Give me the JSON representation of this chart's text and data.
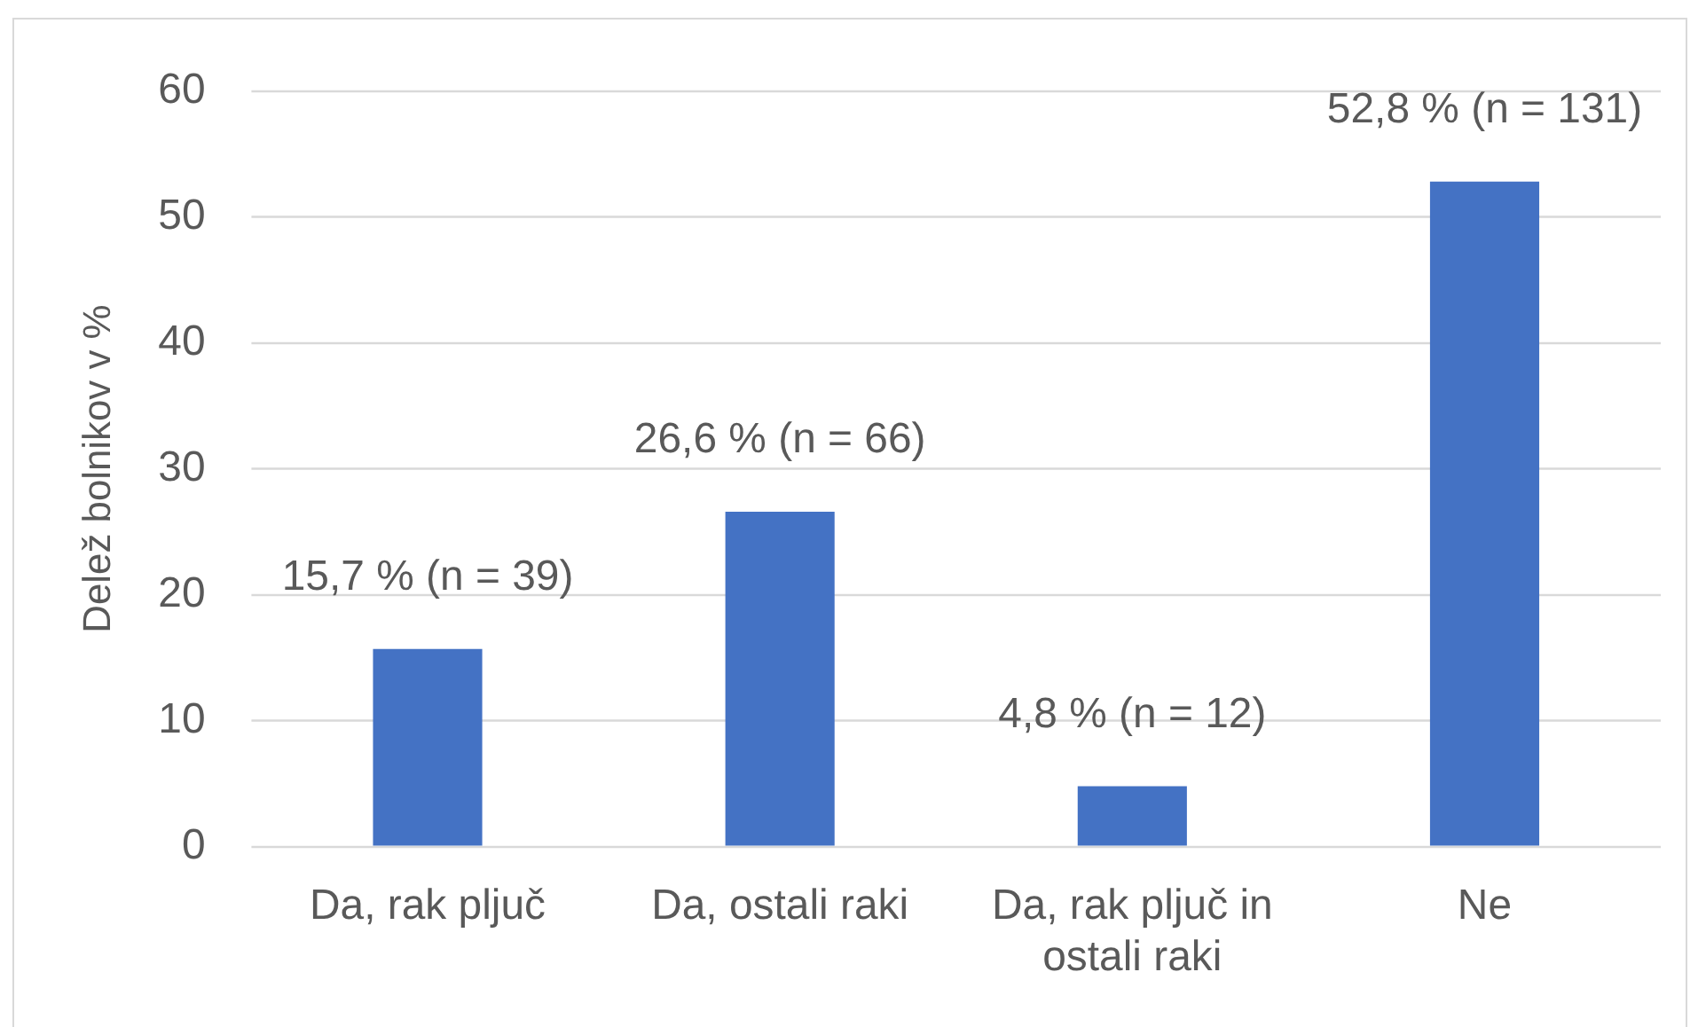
{
  "chart_data": {
    "type": "bar",
    "ylabel": "Delež bolnikov v %",
    "categories": [
      "Da, rak pljuč",
      "Da, ostali raki",
      "Da, rak pljuč in ostali raki",
      "Ne"
    ],
    "values": [
      15.7,
      26.6,
      4.8,
      52.8
    ],
    "value_labels": [
      "15,7 % (n = 39)",
      "26,6 % (n = 66)",
      "4,8 % (n = 12)",
      "52,8 % (n = 131)"
    ],
    "color": "#4472c4",
    "ylim": [
      0,
      60
    ],
    "yticks": [
      0,
      10,
      20,
      30,
      40,
      50,
      60
    ],
    "grid": "y"
  }
}
